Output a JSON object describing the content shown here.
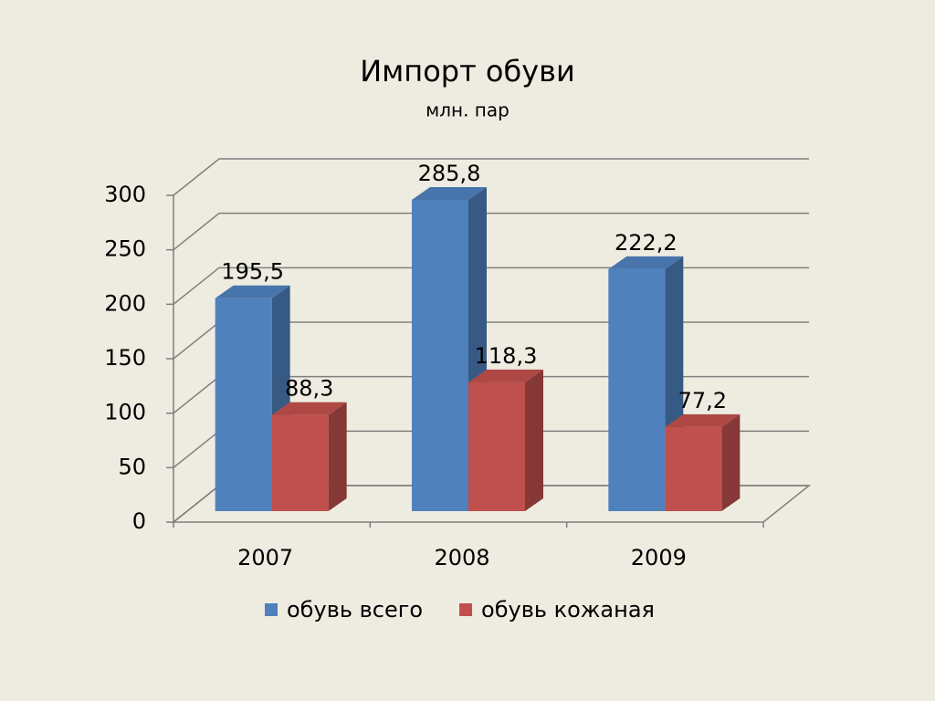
{
  "chart_data": {
    "type": "bar3d",
    "title": "Импорт обуви",
    "subtitle": "млн. пар",
    "categories": [
      "2007",
      "2008",
      "2009"
    ],
    "series": [
      {
        "name": "обувь всего",
        "color": "#4f81bd",
        "values": [
          195.5,
          285.8,
          222.2
        ],
        "value_labels": [
          "195,5",
          "285,8",
          "222,2"
        ]
      },
      {
        "name": "обувь кожаная",
        "color": "#c0504d",
        "values": [
          88.3,
          118.3,
          77.2
        ],
        "value_labels": [
          "88,3",
          "118,3",
          "77,2"
        ]
      }
    ],
    "ylim": [
      0,
      300
    ],
    "yticks": [
      0,
      50,
      100,
      150,
      200,
      250,
      300
    ],
    "grid": true,
    "legend": "bottom"
  }
}
